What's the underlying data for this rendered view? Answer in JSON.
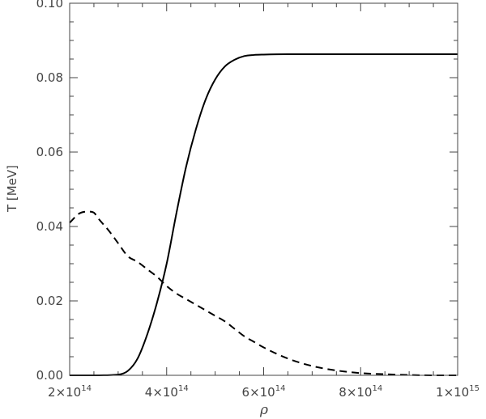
{
  "chart_data": {
    "type": "line",
    "title": "",
    "xlabel": "ρ",
    "ylabel": "T [MeV]",
    "xlim": [
      200000000000000.0,
      1000000000000000.0
    ],
    "ylim": [
      0,
      0.1
    ],
    "grid": false,
    "legend": "none",
    "x_ticks": [
      {
        "value": 200000000000000.0,
        "mantissa": "2",
        "exponent": "14"
      },
      {
        "value": 400000000000000.0,
        "mantissa": "4",
        "exponent": "14"
      },
      {
        "value": 600000000000000.0,
        "mantissa": "6",
        "exponent": "14"
      },
      {
        "value": 800000000000000.0,
        "mantissa": "8",
        "exponent": "14"
      },
      {
        "value": 1000000000000000.0,
        "mantissa": "1",
        "exponent": "15"
      }
    ],
    "y_ticks": [
      {
        "value": 0.0,
        "label": "0.00"
      },
      {
        "value": 0.02,
        "label": "0.02"
      },
      {
        "value": 0.04,
        "label": "0.04"
      },
      {
        "value": 0.06,
        "label": "0.06"
      },
      {
        "value": 0.08,
        "label": "0.08"
      },
      {
        "value": 0.1,
        "label": "0.10"
      }
    ],
    "series": [
      {
        "style": "solid",
        "color": "#000000",
        "x": [
          200000000000000.0,
          250000000000000.0,
          300000000000000.0,
          320000000000000.0,
          340000000000000.0,
          360000000000000.0,
          380000000000000.0,
          400000000000000.0,
          420000000000000.0,
          440000000000000.0,
          460000000000000.0,
          480000000000000.0,
          500000000000000.0,
          520000000000000.0,
          540000000000000.0,
          560000000000000.0,
          580000000000000.0,
          600000000000000.0,
          650000000000000.0,
          700000000000000.0,
          800000000000000.0,
          900000000000000.0,
          1000000000000000.0
        ],
        "y": [
          0.0,
          0.0,
          0.0002,
          0.0012,
          0.0045,
          0.011,
          0.0195,
          0.03,
          0.0435,
          0.056,
          0.066,
          0.074,
          0.0795,
          0.083,
          0.0848,
          0.0858,
          0.0861,
          0.0862,
          0.0863,
          0.0863,
          0.0863,
          0.0863,
          0.0863
        ]
      },
      {
        "style": "dashed",
        "color": "#000000",
        "x": [
          200000000000000.0,
          220000000000000.0,
          240000000000000.0,
          250000000000000.0,
          260000000000000.0,
          280000000000000.0,
          300000000000000.0,
          320000000000000.0,
          340000000000000.0,
          360000000000000.0,
          380000000000000.0,
          400000000000000.0,
          420000000000000.0,
          440000000000000.0,
          460000000000000.0,
          480000000000000.0,
          500000000000000.0,
          520000000000000.0,
          540000000000000.0,
          560000000000000.0,
          580000000000000.0,
          600000000000000.0,
          650000000000000.0,
          700000000000000.0,
          750000000000000.0,
          800000000000000.0,
          850000000000000.0,
          900000000000000.0,
          950000000000000.0,
          1000000000000000.0
        ],
        "y": [
          0.041,
          0.0435,
          0.044,
          0.0437,
          0.042,
          0.039,
          0.0355,
          0.032,
          0.0305,
          0.0285,
          0.0265,
          0.024,
          0.022,
          0.0205,
          0.019,
          0.0175,
          0.016,
          0.0145,
          0.0125,
          0.0105,
          0.009,
          0.0075,
          0.0045,
          0.0025,
          0.0013,
          0.0006,
          0.0003,
          0.0001,
          0.0,
          0.0
        ]
      }
    ]
  }
}
